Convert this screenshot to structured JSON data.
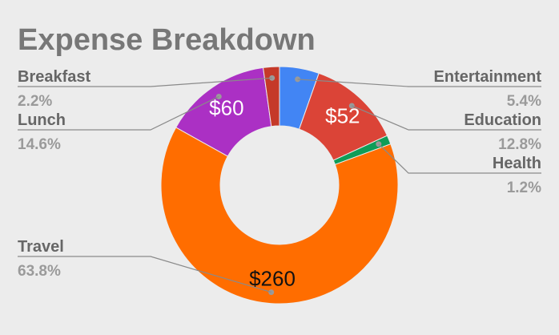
{
  "chart_data": {
    "type": "pie",
    "title": "Expense Breakdown",
    "donut": true,
    "currency": "$",
    "slices": [
      {
        "name": "Entertainment",
        "percent": "5.4%",
        "value": 22,
        "value_label": "",
        "color": "#4285f4",
        "side": "right"
      },
      {
        "name": "Education",
        "percent": "12.8%",
        "value": 52,
        "value_label": "$52",
        "color": "#db4437",
        "side": "right"
      },
      {
        "name": "Health",
        "percent": "1.2%",
        "value": 5,
        "value_label": "",
        "color": "#0f9d58",
        "side": "right"
      },
      {
        "name": "Travel",
        "percent": "63.8%",
        "value": 260,
        "value_label": "$260",
        "color": "#ff6d00",
        "side": "left"
      },
      {
        "name": "Lunch",
        "percent": "14.6%",
        "value": 60,
        "value_label": "$60",
        "color": "#ab30c4",
        "side": "left"
      },
      {
        "name": "Breakfast",
        "percent": "2.2%",
        "value": 9,
        "value_label": "",
        "color": "#c53929",
        "side": "left"
      }
    ]
  }
}
